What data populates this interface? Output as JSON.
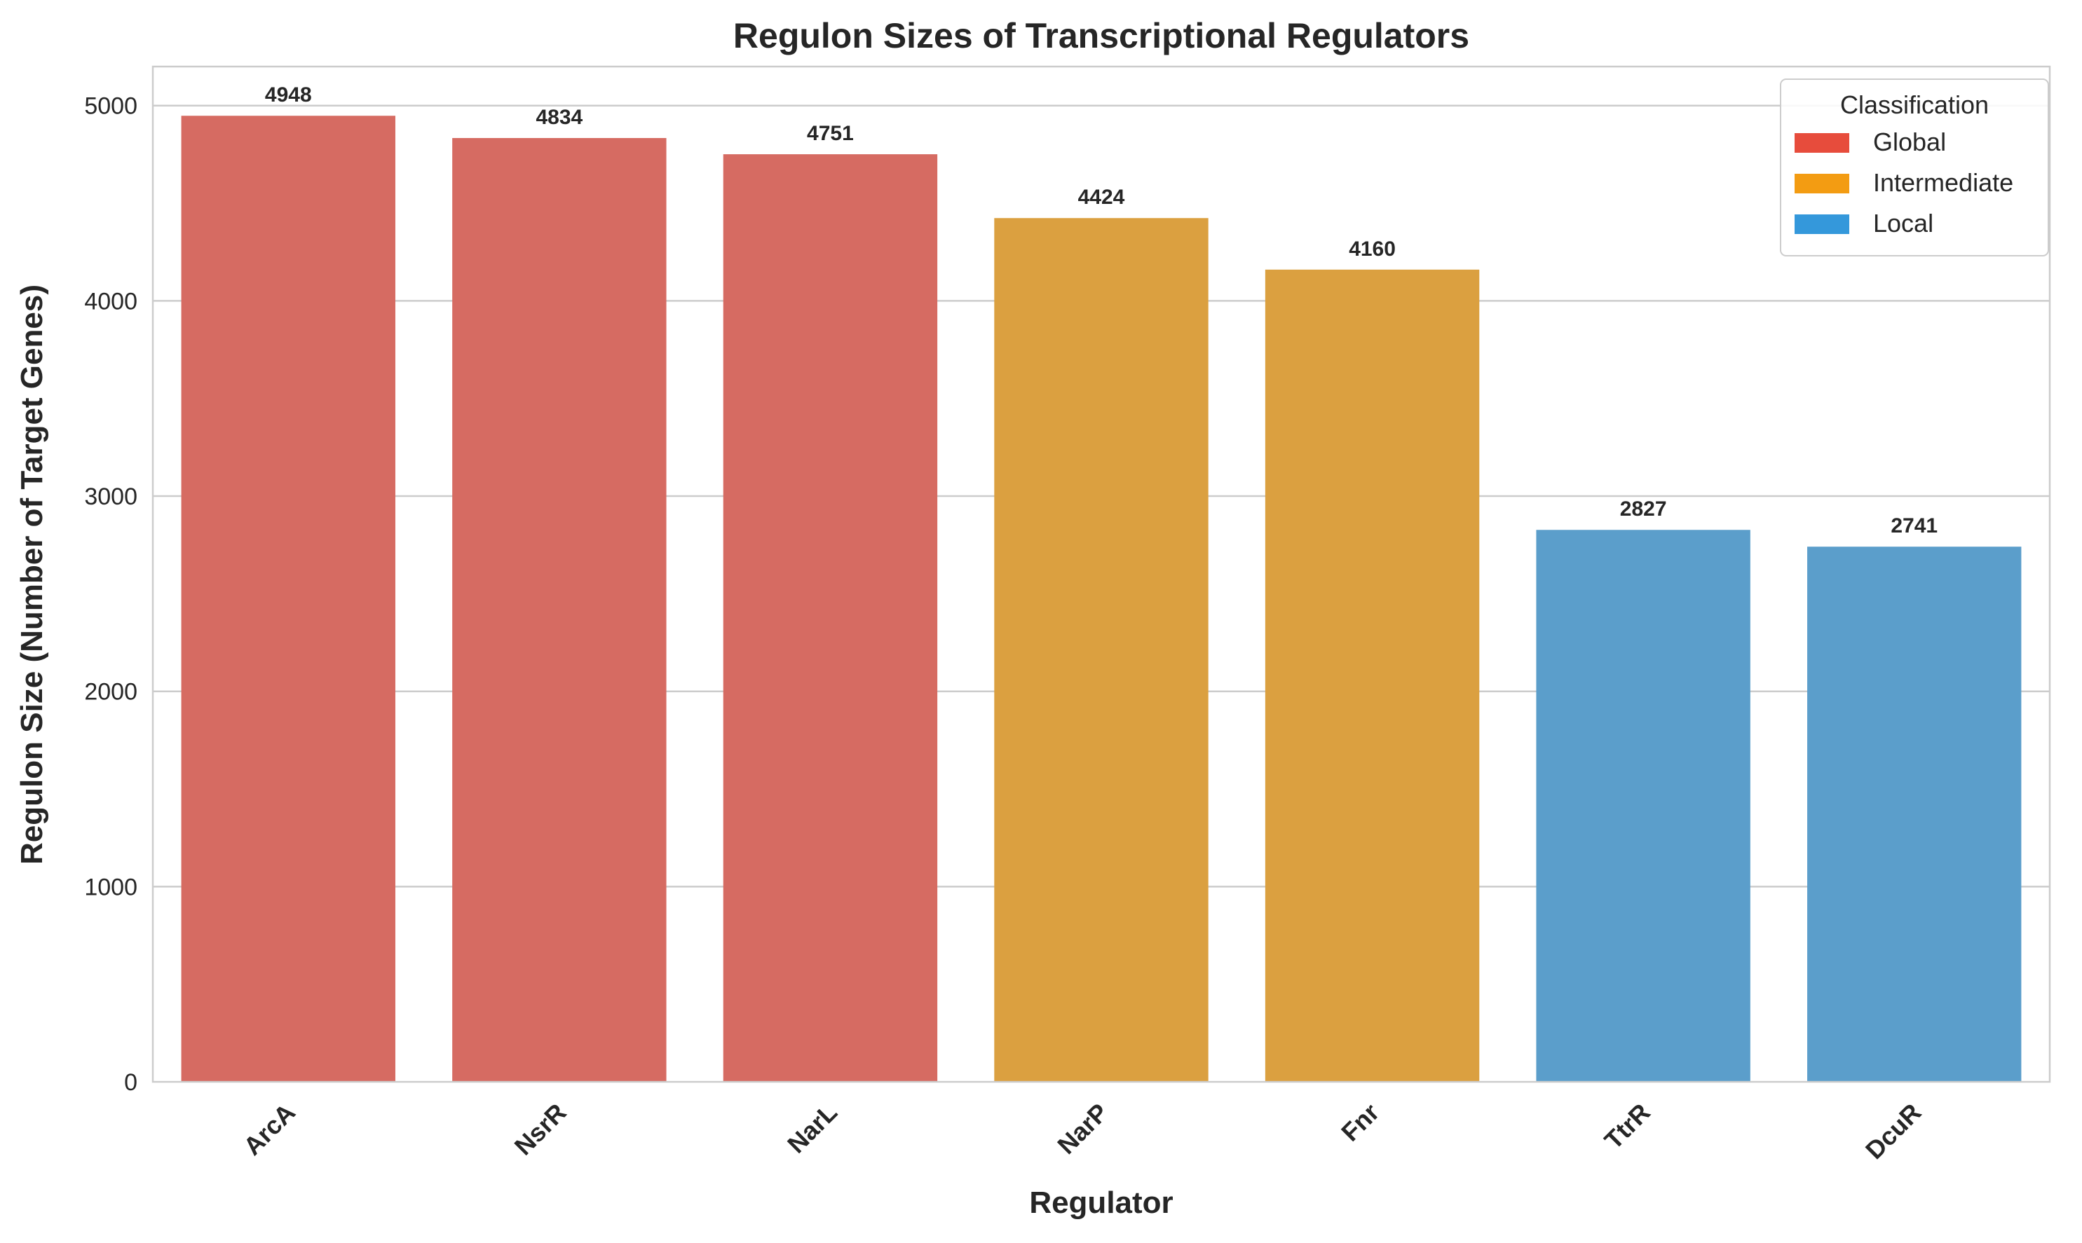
{
  "chart_data": {
    "type": "bar",
    "title": "Regulon Sizes of Transcriptional Regulators",
    "xlabel": "Regulator",
    "ylabel": "Regulon Size (Number of Target Genes)",
    "categories": [
      "ArcA",
      "NsrR",
      "NarL",
      "NarP",
      "Fnr",
      "TtrR",
      "DcuR"
    ],
    "values": [
      4948,
      4834,
      4751,
      4424,
      4160,
      2827,
      2741
    ],
    "classification": [
      "Global",
      "Global",
      "Global",
      "Intermediate",
      "Intermediate",
      "Local",
      "Local"
    ],
    "data_labels": [
      "4948",
      "4834",
      "4751",
      "4424",
      "4160",
      "2827",
      "2741"
    ],
    "ylim": [
      0,
      5200
    ],
    "yticks": [
      0,
      1000,
      2000,
      3000,
      4000,
      5000
    ],
    "ytick_labels": [
      "0",
      "1000",
      "2000",
      "3000",
      "4000",
      "5000"
    ],
    "grid": "horizontal",
    "legend": {
      "title": "Classification",
      "placement": "top-right",
      "entries": [
        {
          "label": "Global",
          "color": "#e74c3c"
        },
        {
          "label": "Intermediate",
          "color": "#f39c12"
        },
        {
          "label": "Local",
          "color": "#3498db"
        }
      ]
    },
    "bar_colors": {
      "Global": "#d66b62",
      "Intermediate": "#dba040",
      "Local": "#5b9ecb"
    }
  }
}
